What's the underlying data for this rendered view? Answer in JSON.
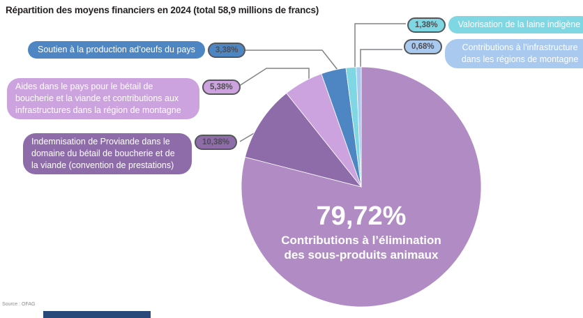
{
  "title": "Répartition des moyens financiers en 2024 (total 58,9 millions de francs)",
  "chart_data": {
    "type": "pie",
    "title": "Répartition des moyens financiers en 2024 (total 58,9 millions de francs)",
    "total_label": "58,9 millions de francs",
    "year": "2024",
    "direction": "clockwise",
    "start_angle_deg": 0,
    "legend_position": "callouts",
    "slices": [
      {
        "id": "elimination",
        "label": "Contributions à l’élimination des sous-produits animaux",
        "pct_label": "79,72%",
        "value": 79.72,
        "color": "#b18cc4"
      },
      {
        "id": "proviande",
        "label": "Indemnisation de Proviande dans le domaine du bétail de boucherie et de la viande (convention de prestations)",
        "pct_label": "10,38%",
        "value": 10.38,
        "color": "#8e6caa"
      },
      {
        "id": "aides",
        "label": "Aides dans le pays pour le bétail de boucherie et la viande et contributions aux infrastructures dans la région de montagne",
        "pct_label": "5,38%",
        "value": 5.38,
        "color": "#cda3df"
      },
      {
        "id": "oeufs",
        "label": "Soutien à la production ad’oeufs du pays",
        "pct_label": "3,38%",
        "value": 3.38,
        "color": "#4e86c4"
      },
      {
        "id": "laine",
        "label": "Valorisation de la laine indigène",
        "pct_label": "1,38%",
        "value": 1.38,
        "color": "#7ed7e2"
      },
      {
        "id": "infra",
        "label": "Contributions à l’infrastructure dans les régions de montagne",
        "pct_label": "0,68%",
        "value": 0.68,
        "color": "#a9c9ee"
      }
    ]
  },
  "center_label": {
    "pct": "79,72%",
    "line1": "Contributions à l’élimination",
    "line2": "des sous-produits animaux"
  },
  "footer": {
    "source": "Source : OFAG"
  }
}
